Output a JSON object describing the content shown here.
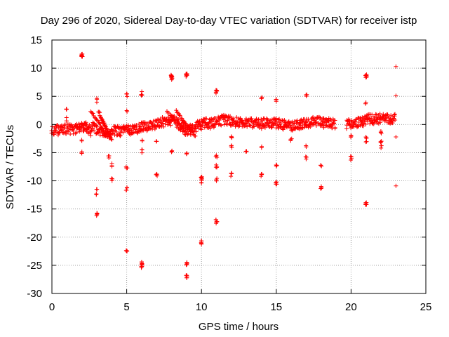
{
  "chart_data": {
    "type": "scatter",
    "title": "Day 296 of 2020, Sidereal Day-to-day VTEC variation (SDTVAR) for receiver istp",
    "xlabel": "GPS time / hours",
    "ylabel": "SDTVAR / TECUs",
    "xlim": [
      0,
      25
    ],
    "ylim": [
      -30,
      15
    ],
    "xticks": [
      0,
      5,
      10,
      15,
      20,
      25
    ],
    "yticks": [
      -30,
      -25,
      -20,
      -15,
      -10,
      -5,
      0,
      5,
      10,
      15
    ],
    "grid": true,
    "marker": "+",
    "color": "#ff0000",
    "main_band": [
      [
        0.0,
        -0.9
      ],
      [
        0.5,
        -1.0
      ],
      [
        1.0,
        -0.8
      ],
      [
        1.5,
        -0.8
      ],
      [
        2.0,
        -0.5
      ],
      [
        2.2,
        -0.2
      ],
      [
        2.5,
        -0.8
      ],
      [
        2.8,
        -0.3
      ],
      [
        3.0,
        -1.2
      ],
      [
        3.3,
        -1.5
      ],
      [
        3.6,
        -1.6
      ],
      [
        3.9,
        -1.8
      ],
      [
        4.2,
        -1.0
      ],
      [
        4.6,
        -1.2
      ],
      [
        5.0,
        -1.0
      ],
      [
        5.4,
        -0.9
      ],
      [
        5.8,
        -0.6
      ],
      [
        6.2,
        -0.3
      ],
      [
        6.6,
        -0.3
      ],
      [
        7.0,
        0.0
      ],
      [
        7.4,
        0.4
      ],
      [
        7.8,
        0.6
      ],
      [
        8.2,
        0.8
      ],
      [
        8.6,
        -0.3
      ],
      [
        9.0,
        -1.2
      ],
      [
        9.4,
        -0.8
      ],
      [
        9.8,
        -0.2
      ],
      [
        10.2,
        0.2
      ],
      [
        10.6,
        0.2
      ],
      [
        11.0,
        0.5
      ],
      [
        11.4,
        0.8
      ],
      [
        11.8,
        0.8
      ],
      [
        12.2,
        0.5
      ],
      [
        12.6,
        0.4
      ],
      [
        13.0,
        0.3
      ],
      [
        13.4,
        0.3
      ],
      [
        13.8,
        0.1
      ],
      [
        14.2,
        0.2
      ],
      [
        14.6,
        0.3
      ],
      [
        15.0,
        0.2
      ],
      [
        15.4,
        0.0
      ],
      [
        15.8,
        -0.1
      ],
      [
        16.2,
        -0.2
      ],
      [
        16.6,
        0.0
      ],
      [
        17.0,
        0.2
      ],
      [
        17.4,
        0.4
      ],
      [
        17.8,
        0.5
      ],
      [
        18.2,
        0.3
      ],
      [
        18.6,
        0.2
      ],
      [
        19.0,
        0.1
      ],
      [
        19.7,
        0.0
      ],
      [
        20.0,
        0.2
      ],
      [
        20.4,
        0.3
      ],
      [
        20.8,
        0.6
      ],
      [
        21.2,
        1.0
      ],
      [
        21.6,
        0.9
      ],
      [
        22.0,
        1.1
      ],
      [
        22.4,
        1.0
      ],
      [
        22.8,
        1.0
      ],
      [
        23.0,
        1.1
      ]
    ],
    "diagonals": [
      [
        [
          2.6,
          2.5
        ],
        [
          3.6,
          -1.8
        ]
      ],
      [
        [
          3.1,
          2.4
        ],
        [
          4.0,
          -2.8
        ]
      ],
      [
        [
          3.3,
          1.0
        ],
        [
          3.9,
          -2.2
        ]
      ],
      [
        [
          7.7,
          2.2
        ],
        [
          8.8,
          -0.8
        ]
      ],
      [
        [
          8.3,
          2.4
        ],
        [
          9.3,
          -1.2
        ]
      ],
      [
        [
          8.7,
          0.6
        ],
        [
          9.6,
          -2.0
        ]
      ],
      [
        [
          1.8,
          -0.2
        ],
        [
          2.6,
          -1.8
        ]
      ]
    ],
    "clusters": [
      [
        2.0,
        12.2,
        8
      ],
      [
        8.0,
        8.6,
        8
      ],
      [
        8.0,
        8.1,
        5
      ],
      [
        9.0,
        8.7,
        8
      ],
      [
        21.0,
        8.7,
        8
      ],
      [
        11.0,
        5.8,
        6
      ],
      [
        6.0,
        5.5,
        5
      ],
      [
        5.0,
        5.2,
        4
      ],
      [
        14.0,
        4.9,
        3
      ],
      [
        17.0,
        5.0,
        3
      ],
      [
        15.0,
        4.2,
        3
      ],
      [
        3.0,
        4.3,
        3
      ],
      [
        1.0,
        2.5,
        3
      ],
      [
        5.0,
        2.2,
        2
      ],
      [
        21.0,
        3.7,
        2
      ],
      [
        1.0,
        1.0,
        2
      ],
      [
        2.0,
        -3.0,
        2
      ],
      [
        2.0,
        -5.0,
        3
      ],
      [
        3.8,
        -5.6,
        3
      ],
      [
        4.0,
        -7.2,
        3
      ],
      [
        4.0,
        -9.7,
        3
      ],
      [
        5.0,
        -7.5,
        3
      ],
      [
        5.0,
        -11.5,
        4
      ],
      [
        3.0,
        -12.6,
        2
      ],
      [
        3.0,
        -11.7,
        2
      ],
      [
        3.0,
        -16.0,
        5
      ],
      [
        5.0,
        -22.2,
        6
      ],
      [
        6.0,
        -24.7,
        6
      ],
      [
        6.0,
        -25.3,
        4
      ],
      [
        6.0,
        -4.8,
        3
      ],
      [
        6.0,
        -2.7,
        2
      ],
      [
        7.0,
        -3.3,
        2
      ],
      [
        7.0,
        -9.0,
        4
      ],
      [
        8.0,
        -4.6,
        3
      ],
      [
        9.0,
        -5.0,
        3
      ],
      [
        9.0,
        -24.8,
        5
      ],
      [
        9.0,
        -27.1,
        6
      ],
      [
        10.0,
        -9.5,
        5
      ],
      [
        10.0,
        -10.3,
        3
      ],
      [
        10.0,
        -21.0,
        5
      ],
      [
        11.0,
        -17.2,
        6
      ],
      [
        11.0,
        -5.8,
        3
      ],
      [
        11.0,
        -7.4,
        4
      ],
      [
        11.0,
        -9.9,
        3
      ],
      [
        12.0,
        -2.1,
        3
      ],
      [
        12.0,
        -3.8,
        3
      ],
      [
        12.0,
        -8.9,
        4
      ],
      [
        13.0,
        -5.0,
        3
      ],
      [
        14.0,
        -4.0,
        2
      ],
      [
        14.0,
        -9.0,
        4
      ],
      [
        15.0,
        -7.2,
        3
      ],
      [
        15.0,
        -10.5,
        5
      ],
      [
        16.0,
        -2.6,
        3
      ],
      [
        17.0,
        -4.1,
        2
      ],
      [
        17.0,
        -5.8,
        3
      ],
      [
        18.0,
        -7.5,
        3
      ],
      [
        18.0,
        -11.3,
        5
      ],
      [
        20.0,
        -2.1,
        3
      ],
      [
        20.0,
        -6.0,
        4
      ],
      [
        21.0,
        -2.1,
        3
      ],
      [
        21.0,
        -3.2,
        2
      ],
      [
        21.0,
        -14.0,
        6
      ],
      [
        22.0,
        -1.5,
        3
      ],
      [
        22.0,
        -3.0,
        3
      ],
      [
        22.0,
        -4.0,
        3
      ],
      [
        23.0,
        10.3,
        1
      ],
      [
        23.0,
        5.1,
        1
      ],
      [
        23.0,
        -2.2,
        1
      ],
      [
        23.0,
        -10.9,
        1
      ]
    ]
  }
}
